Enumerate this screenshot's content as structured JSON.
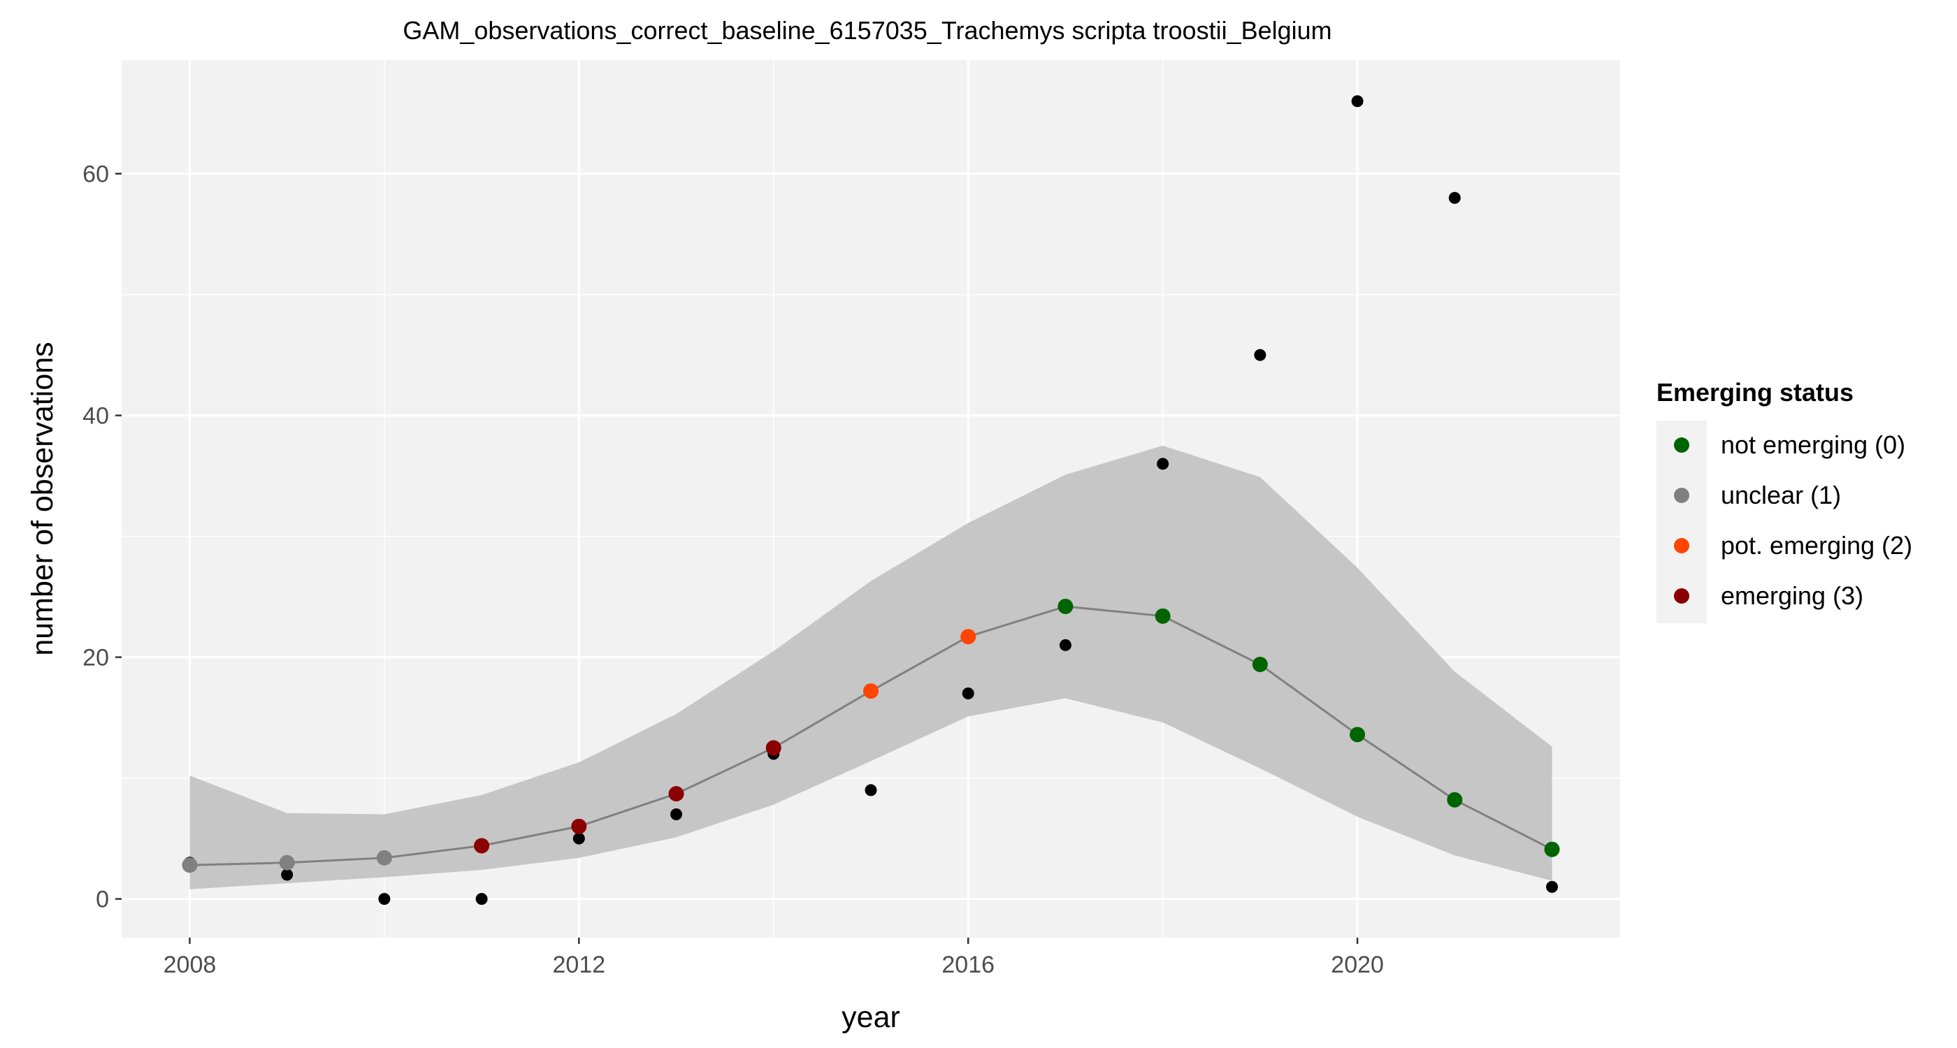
{
  "chart_data": {
    "type": "scatter",
    "title": "GAM_observations_correct_baseline_6157035_Trachemys scripta troostii_Belgium",
    "xlabel": "year",
    "ylabel": "number of observations",
    "xlim": [
      2007.3,
      2022.7
    ],
    "ylim": [
      -3.2,
      69.4
    ],
    "xticks": [
      2008,
      2012,
      2016,
      2020
    ],
    "yticks": [
      0,
      20,
      40,
      60
    ],
    "grid": true,
    "legend": {
      "title": "Emerging status",
      "placement": "right",
      "items": [
        {
          "label": "not emerging (0)",
          "color": "#006400",
          "status": 0
        },
        {
          "label": "unclear (1)",
          "color": "#808080",
          "status": 1
        },
        {
          "label": "pot. emerging (2)",
          "color": "#FF4500",
          "status": 2
        },
        {
          "label": "emerging (3)",
          "color": "#8B0000",
          "status": 3
        }
      ]
    },
    "observations": {
      "x": [
        2008,
        2009,
        2010,
        2011,
        2012,
        2013,
        2014,
        2015,
        2016,
        2017,
        2018,
        2019,
        2020,
        2021,
        2022
      ],
      "y": [
        3,
        2,
        0,
        0,
        5,
        7,
        12,
        9,
        17,
        21,
        36,
        45,
        66,
        58,
        1
      ]
    },
    "fit": {
      "x": [
        2008,
        2009,
        2010,
        2011,
        2012,
        2013,
        2014,
        2015,
        2016,
        2017,
        2018,
        2019,
        2020,
        2021,
        2022
      ],
      "y": [
        2.8,
        3.0,
        3.4,
        4.4,
        6.0,
        8.7,
        12.5,
        17.2,
        21.7,
        24.2,
        23.4,
        19.4,
        13.6,
        8.2,
        4.1
      ],
      "status": [
        1,
        1,
        1,
        3,
        3,
        3,
        3,
        2,
        2,
        0,
        0,
        0,
        0,
        0,
        0
      ],
      "lower": [
        0.8,
        1.3,
        1.8,
        2.4,
        3.4,
        5.1,
        7.8,
        11.4,
        15.1,
        16.6,
        14.6,
        10.8,
        6.8,
        3.6,
        1.5
      ],
      "upper": [
        10.2,
        7.1,
        7.0,
        8.6,
        11.3,
        15.3,
        20.5,
        26.3,
        31.1,
        35.1,
        37.5,
        34.9,
        27.4,
        18.8,
        12.6
      ]
    },
    "colors": {
      "panel": "#F2F2F2",
      "grid": "#FFFFFF",
      "ribbon": "#C6C6C6",
      "line": "#808080",
      "observation": "#000000"
    }
  }
}
